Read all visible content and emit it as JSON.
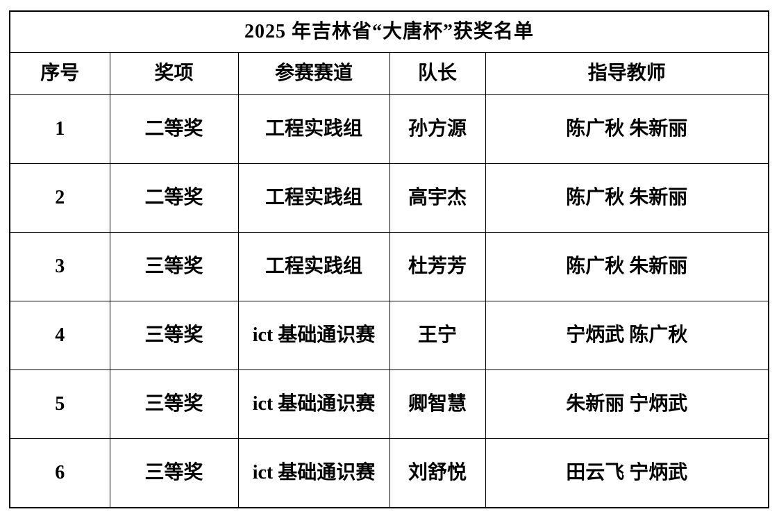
{
  "table": {
    "title": "2025 年吉林省“大唐杯”获奖名单",
    "columns": [
      {
        "key": "index",
        "label": "序号"
      },
      {
        "key": "award",
        "label": "奖项"
      },
      {
        "key": "track",
        "label": "参赛赛道"
      },
      {
        "key": "captain",
        "label": "队长"
      },
      {
        "key": "advisors",
        "label": "指导教师"
      }
    ],
    "rows": [
      {
        "index": "1",
        "award": "二等奖",
        "track": "工程实践组",
        "captain": "孙方源",
        "advisors": "陈广秋 朱新丽"
      },
      {
        "index": "2",
        "award": "二等奖",
        "track": "工程实践组",
        "captain": "高宇杰",
        "advisors": "陈广秋 朱新丽"
      },
      {
        "index": "3",
        "award": "三等奖",
        "track": "工程实践组",
        "captain": "杜芳芳",
        "advisors": "陈广秋 朱新丽"
      },
      {
        "index": "4",
        "award": "三等奖",
        "track": "ict 基础通识赛",
        "captain": "王宁",
        "advisors": "宁炳武 陈广秋"
      },
      {
        "index": "5",
        "award": "三等奖",
        "track": "ict 基础通识赛",
        "captain": "卿智慧",
        "advisors": "朱新丽 宁炳武"
      },
      {
        "index": "6",
        "award": "三等奖",
        "track": "ict 基础通识赛",
        "captain": "刘舒悦",
        "advisors": "田云飞 宁炳武"
      }
    ],
    "colors": {
      "border": "#000000",
      "text": "#000000",
      "background": "#ffffff"
    }
  }
}
